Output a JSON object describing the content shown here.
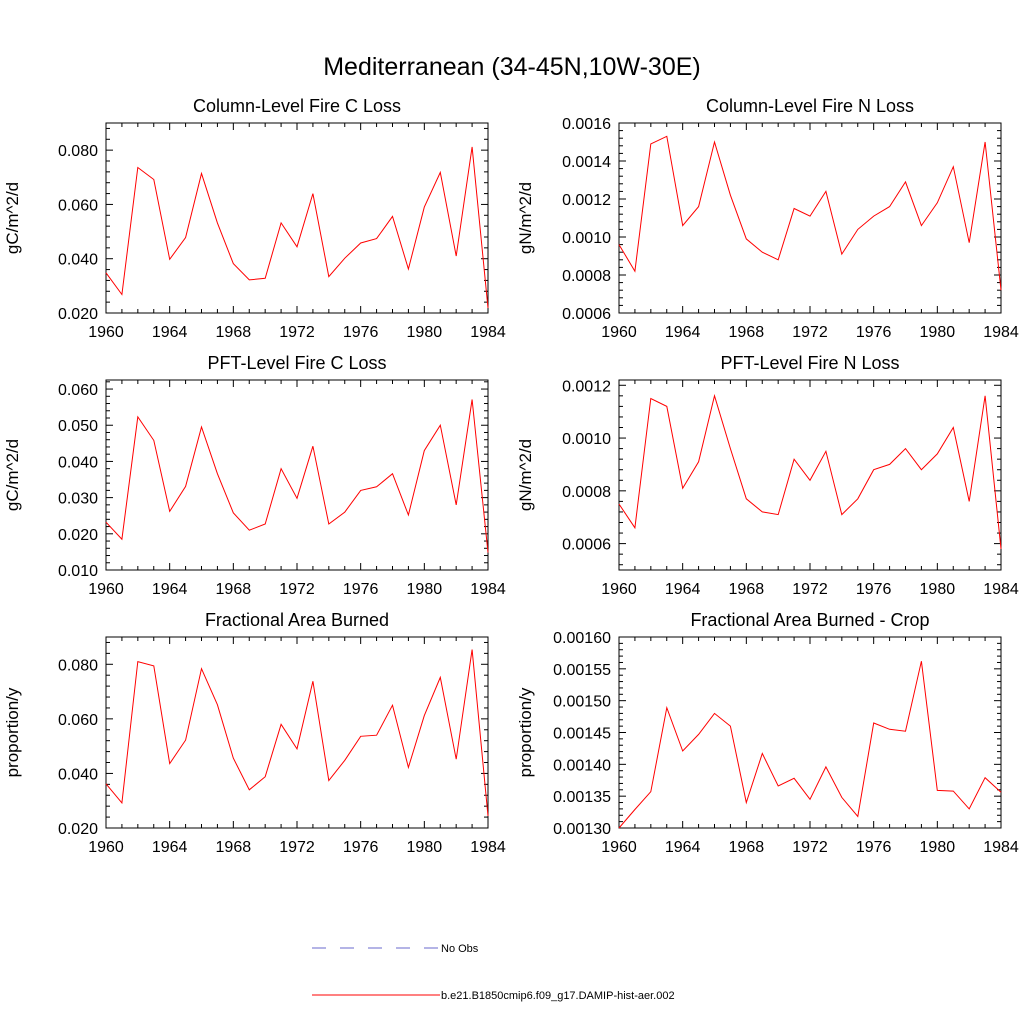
{
  "title": "Mediterranean (34-45N,10W-30E)",
  "colors": {
    "model": "#ff0000",
    "obs": "#6a6acd",
    "axis": "#000000"
  },
  "legend": {
    "obs_label": "No Obs",
    "model_label": "b.e21.B1850cmip6.f09_g17.DAMIP-hist-aer.002"
  },
  "chart_data": [
    {
      "type": "line",
      "title": "Column-Level Fire C Loss",
      "ylabel": "gC/m^2/d",
      "xlim": [
        1960,
        1984
      ],
      "ylim": [
        0.02,
        0.09
      ],
      "xticks": [
        1960,
        1964,
        1968,
        1972,
        1976,
        1980,
        1984
      ],
      "xtick_labels": [
        "1960",
        "1964",
        "1968",
        "1972",
        "1976",
        "1980",
        "1984"
      ],
      "yticks": [
        0.02,
        0.04,
        0.06,
        0.08
      ],
      "ytick_labels": [
        "0.020",
        "0.040",
        "0.060",
        "0.080"
      ],
      "x": [
        1960,
        1961,
        1962,
        1963,
        1964,
        1965,
        1966,
        1967,
        1968,
        1969,
        1970,
        1971,
        1972,
        1973,
        1974,
        1975,
        1976,
        1977,
        1978,
        1979,
        1980,
        1981,
        1982,
        1983,
        1984
      ],
      "series": [
        {
          "values": [
            0.0348,
            0.0268,
            0.0736,
            0.0692,
            0.0398,
            0.0478,
            0.0714,
            0.0532,
            0.0382,
            0.0322,
            0.0328,
            0.0532,
            0.0444,
            0.064,
            0.0334,
            0.0402,
            0.0458,
            0.0474,
            0.0556,
            0.0362,
            0.059,
            0.0718,
            0.041,
            0.0812,
            0.0218
          ]
        }
      ]
    },
    {
      "type": "line",
      "title": "Column-Level Fire N Loss",
      "ylabel": "gN/m^2/d",
      "xlim": [
        1960,
        1984
      ],
      "ylim": [
        0.0006,
        0.0016
      ],
      "xticks": [
        1960,
        1964,
        1968,
        1972,
        1976,
        1980,
        1984
      ],
      "xtick_labels": [
        "1960",
        "1964",
        "1968",
        "1972",
        "1976",
        "1980",
        "1984"
      ],
      "yticks": [
        0.0006,
        0.0008,
        0.001,
        0.0012,
        0.0014,
        0.0016
      ],
      "ytick_labels": [
        "0.0006",
        "0.0008",
        "0.0010",
        "0.0012",
        "0.0014",
        "0.0016"
      ],
      "x": [
        1960,
        1961,
        1962,
        1963,
        1964,
        1965,
        1966,
        1967,
        1968,
        1969,
        1970,
        1971,
        1972,
        1973,
        1974,
        1975,
        1976,
        1977,
        1978,
        1979,
        1980,
        1981,
        1982,
        1983,
        1984
      ],
      "series": [
        {
          "values": [
            0.00096,
            0.00082,
            0.00149,
            0.00153,
            0.00106,
            0.00116,
            0.0015,
            0.00122,
            0.00099,
            0.00092,
            0.00088,
            0.00115,
            0.00111,
            0.00124,
            0.00091,
            0.00104,
            0.00111,
            0.00116,
            0.00129,
            0.00106,
            0.00118,
            0.00137,
            0.00097,
            0.0015,
            0.00072
          ]
        }
      ]
    },
    {
      "type": "line",
      "title": "PFT-Level Fire C Loss",
      "ylabel": "gC/m^2/d",
      "xlim": [
        1960,
        1984
      ],
      "ylim": [
        0.01,
        0.0625
      ],
      "xticks": [
        1960,
        1964,
        1968,
        1972,
        1976,
        1980,
        1984
      ],
      "xtick_labels": [
        "1960",
        "1964",
        "1968",
        "1972",
        "1976",
        "1980",
        "1984"
      ],
      "yticks": [
        0.01,
        0.02,
        0.03,
        0.04,
        0.05,
        0.06
      ],
      "ytick_labels": [
        "0.010",
        "0.020",
        "0.030",
        "0.040",
        "0.050",
        "0.060"
      ],
      "x": [
        1960,
        1961,
        1962,
        1963,
        1964,
        1965,
        1966,
        1967,
        1968,
        1969,
        1970,
        1971,
        1972,
        1973,
        1974,
        1975,
        1976,
        1977,
        1978,
        1979,
        1980,
        1981,
        1982,
        1983,
        1984
      ],
      "series": [
        {
          "values": [
            0.0232,
            0.0185,
            0.0523,
            0.0458,
            0.0262,
            0.0331,
            0.0495,
            0.0366,
            0.0258,
            0.021,
            0.0227,
            0.038,
            0.0298,
            0.0442,
            0.0227,
            0.026,
            0.032,
            0.033,
            0.0366,
            0.0252,
            0.043,
            0.05,
            0.028,
            0.0571,
            0.0148
          ]
        }
      ]
    },
    {
      "type": "line",
      "title": "PFT-Level Fire N Loss",
      "ylabel": "gN/m^2/d",
      "xlim": [
        1960,
        1984
      ],
      "ylim": [
        0.0005,
        0.00122
      ],
      "xticks": [
        1960,
        1964,
        1968,
        1972,
        1976,
        1980,
        1984
      ],
      "xtick_labels": [
        "1960",
        "1964",
        "1968",
        "1972",
        "1976",
        "1980",
        "1984"
      ],
      "yticks": [
        0.0006,
        0.0008,
        0.001,
        0.0012
      ],
      "ytick_labels": [
        "0.0006",
        "0.0008",
        "0.0010",
        "0.0012"
      ],
      "x": [
        1960,
        1961,
        1962,
        1963,
        1964,
        1965,
        1966,
        1967,
        1968,
        1969,
        1970,
        1971,
        1972,
        1973,
        1974,
        1975,
        1976,
        1977,
        1978,
        1979,
        1980,
        1981,
        1982,
        1983,
        1984
      ],
      "series": [
        {
          "values": [
            0.00075,
            0.00066,
            0.00115,
            0.00112,
            0.00081,
            0.00091,
            0.00116,
            0.00096,
            0.00077,
            0.00072,
            0.00071,
            0.00092,
            0.00084,
            0.00095,
            0.00071,
            0.00077,
            0.00088,
            0.0009,
            0.00096,
            0.00088,
            0.00094,
            0.00104,
            0.00076,
            0.00116,
            0.00058
          ]
        }
      ]
    },
    {
      "type": "line",
      "title": "Fractional Area Burned",
      "ylabel": "proportion/y",
      "xlim": [
        1960,
        1984
      ],
      "ylim": [
        0.02,
        0.09
      ],
      "xticks": [
        1960,
        1964,
        1968,
        1972,
        1976,
        1980,
        1984
      ],
      "xtick_labels": [
        "1960",
        "1964",
        "1968",
        "1972",
        "1976",
        "1980",
        "1984"
      ],
      "yticks": [
        0.02,
        0.04,
        0.06,
        0.08
      ],
      "ytick_labels": [
        "0.020",
        "0.040",
        "0.060",
        "0.080"
      ],
      "x": [
        1960,
        1961,
        1962,
        1963,
        1964,
        1965,
        1966,
        1967,
        1968,
        1969,
        1970,
        1971,
        1972,
        1973,
        1974,
        1975,
        1976,
        1977,
        1978,
        1979,
        1980,
        1981,
        1982,
        1983,
        1984
      ],
      "series": [
        {
          "values": [
            0.0362,
            0.0292,
            0.081,
            0.0794,
            0.0436,
            0.0522,
            0.0784,
            0.0652,
            0.0456,
            0.034,
            0.0388,
            0.058,
            0.049,
            0.0738,
            0.0374,
            0.0448,
            0.0536,
            0.054,
            0.065,
            0.0422,
            0.0612,
            0.0752,
            0.0452,
            0.0854,
            0.0244
          ]
        }
      ]
    },
    {
      "type": "line",
      "title": "Fractional Area Burned - Crop",
      "ylabel": "proportion/y",
      "xlim": [
        1960,
        1984
      ],
      "ylim": [
        0.0013,
        0.0016
      ],
      "xticks": [
        1960,
        1964,
        1968,
        1972,
        1976,
        1980,
        1984
      ],
      "xtick_labels": [
        "1960",
        "1964",
        "1968",
        "1972",
        "1976",
        "1980",
        "1984"
      ],
      "yticks": [
        0.0013,
        0.00135,
        0.0014,
        0.00145,
        0.0015,
        0.00155,
        0.0016
      ],
      "ytick_labels": [
        "0.00130",
        "0.00135",
        "0.00140",
        "0.00145",
        "0.00150",
        "0.00155",
        "0.00160"
      ],
      "x": [
        1960,
        1961,
        1962,
        1963,
        1964,
        1965,
        1966,
        1967,
        1968,
        1969,
        1970,
        1971,
        1972,
        1973,
        1974,
        1975,
        1976,
        1977,
        1978,
        1979,
        1980,
        1981,
        1982,
        1983,
        1984
      ],
      "series": [
        {
          "values": [
            0.0013,
            0.001329,
            0.001357,
            0.001489,
            0.001421,
            0.001447,
            0.00148,
            0.00146,
            0.00134,
            0.001417,
            0.001366,
            0.001378,
            0.001345,
            0.001396,
            0.001348,
            0.001318,
            0.001465,
            0.001455,
            0.001452,
            0.001562,
            0.001359,
            0.001358,
            0.00133,
            0.001379,
            0.001356
          ]
        }
      ]
    }
  ]
}
